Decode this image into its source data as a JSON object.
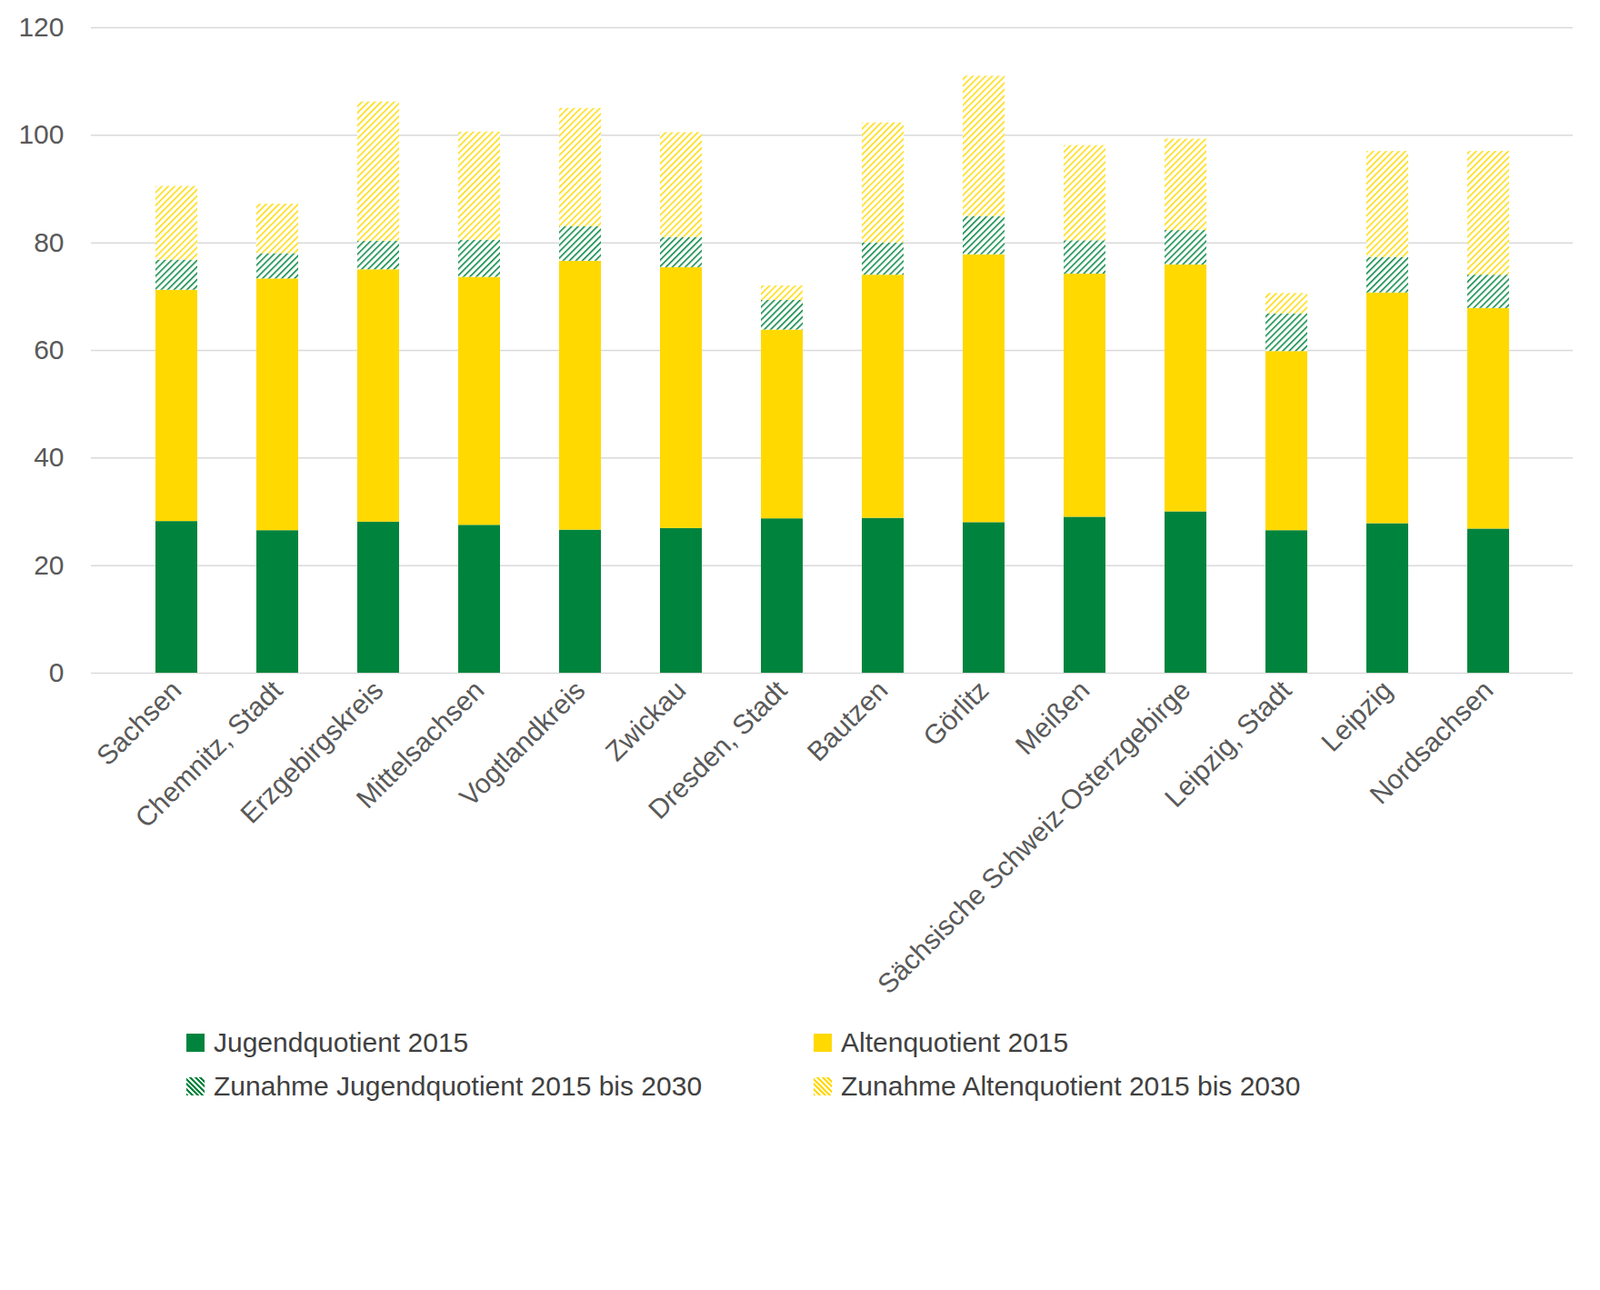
{
  "chart_data": {
    "type": "bar",
    "stacked": true,
    "grid": true,
    "legend": "bottom",
    "categories": [
      "Sachsen",
      "Chemnitz, Stadt",
      "Erzgebirgskreis",
      "Mittelsachsen",
      "Vogtlandkreis",
      "Zwickau",
      "Dresden, Stadt",
      "Bautzen",
      "Görlitz",
      "Meißen",
      "Sächsische Schweiz-Osterzgebirge",
      "Leipzig, Stadt",
      "Leipzig",
      "Nordsachsen"
    ],
    "series": [
      {
        "name": "Jugendquotient 2015",
        "color": "#00843d",
        "line_style": "solid",
        "values": [
          28.2,
          26.5,
          28.1,
          27.5,
          26.6,
          26.9,
          28.7,
          28.8,
          28.0,
          29.0,
          30.0,
          26.5,
          27.8,
          26.8
        ]
      },
      {
        "name": "Altenquotient 2015",
        "color": "#ffd900",
        "line_style": "solid",
        "values": [
          43.0,
          46.8,
          46.9,
          46.1,
          50.0,
          48.5,
          35.1,
          45.2,
          49.8,
          45.2,
          45.9,
          33.3,
          42.9,
          41.0
        ]
      },
      {
        "name": "Zunahme Jugendquotient 2015 bis 2030",
        "color": "#00843d",
        "line_style": "hatched",
        "values": [
          5.6,
          4.7,
          5.3,
          6.9,
          6.4,
          5.6,
          5.5,
          6.0,
          7.1,
          6.2,
          6.4,
          7.0,
          6.6,
          6.2
        ]
      },
      {
        "name": "Zunahme Altenquotient 2015 bis 2030",
        "color": "#ffd900",
        "line_style": "hatched",
        "values": [
          13.7,
          9.2,
          25.9,
          20.1,
          22.0,
          19.5,
          2.7,
          22.3,
          26.1,
          17.7,
          17.0,
          3.8,
          19.7,
          23.0
        ]
      }
    ],
    "ylim": [
      0,
      120
    ],
    "yticks": [
      0,
      20,
      40,
      60,
      80,
      100,
      120
    ]
  }
}
